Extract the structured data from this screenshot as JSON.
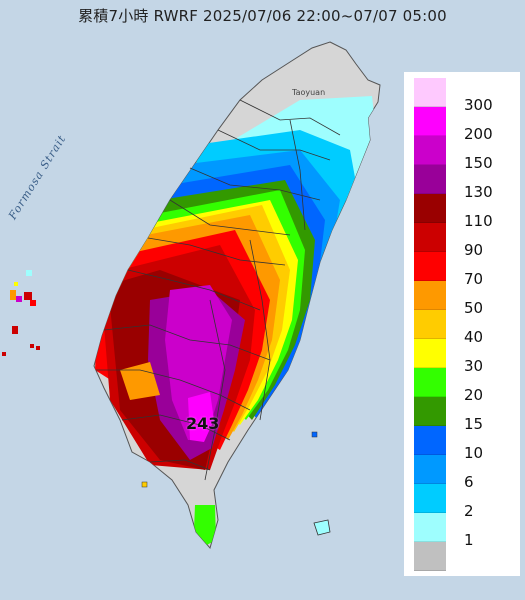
{
  "title": "累積7小時 RWRF 2025/07/06 22:00~07/07 05:00",
  "sea_label": "Formosa Strait",
  "city_label": "Taoyuan",
  "peak_value": "243",
  "colors": {
    "sea": "#c4d6e6",
    "land": "#dcdcdc"
  },
  "legend": [
    {
      "label": "300",
      "color": "#fec9fe"
    },
    {
      "label": "200",
      "color": "#fe00fe"
    },
    {
      "label": "150",
      "color": "#cb00cb"
    },
    {
      "label": "130",
      "color": "#990099"
    },
    {
      "label": "110",
      "color": "#9a0000"
    },
    {
      "label": "90",
      "color": "#cc0000"
    },
    {
      "label": "70",
      "color": "#fe0000"
    },
    {
      "label": "50",
      "color": "#fe9900"
    },
    {
      "label": "40",
      "color": "#ffcc00"
    },
    {
      "label": "30",
      "color": "#ffff00"
    },
    {
      "label": "20",
      "color": "#33ff00"
    },
    {
      "label": "15",
      "color": "#339900"
    },
    {
      "label": "10",
      "color": "#0066ff"
    },
    {
      "label": "6",
      "color": "#0099ff"
    },
    {
      "label": "2",
      "color": "#00ccff"
    },
    {
      "label": "1",
      "color": "#9efefe"
    },
    {
      "label": "",
      "color": "#c0c0c0"
    }
  ]
}
